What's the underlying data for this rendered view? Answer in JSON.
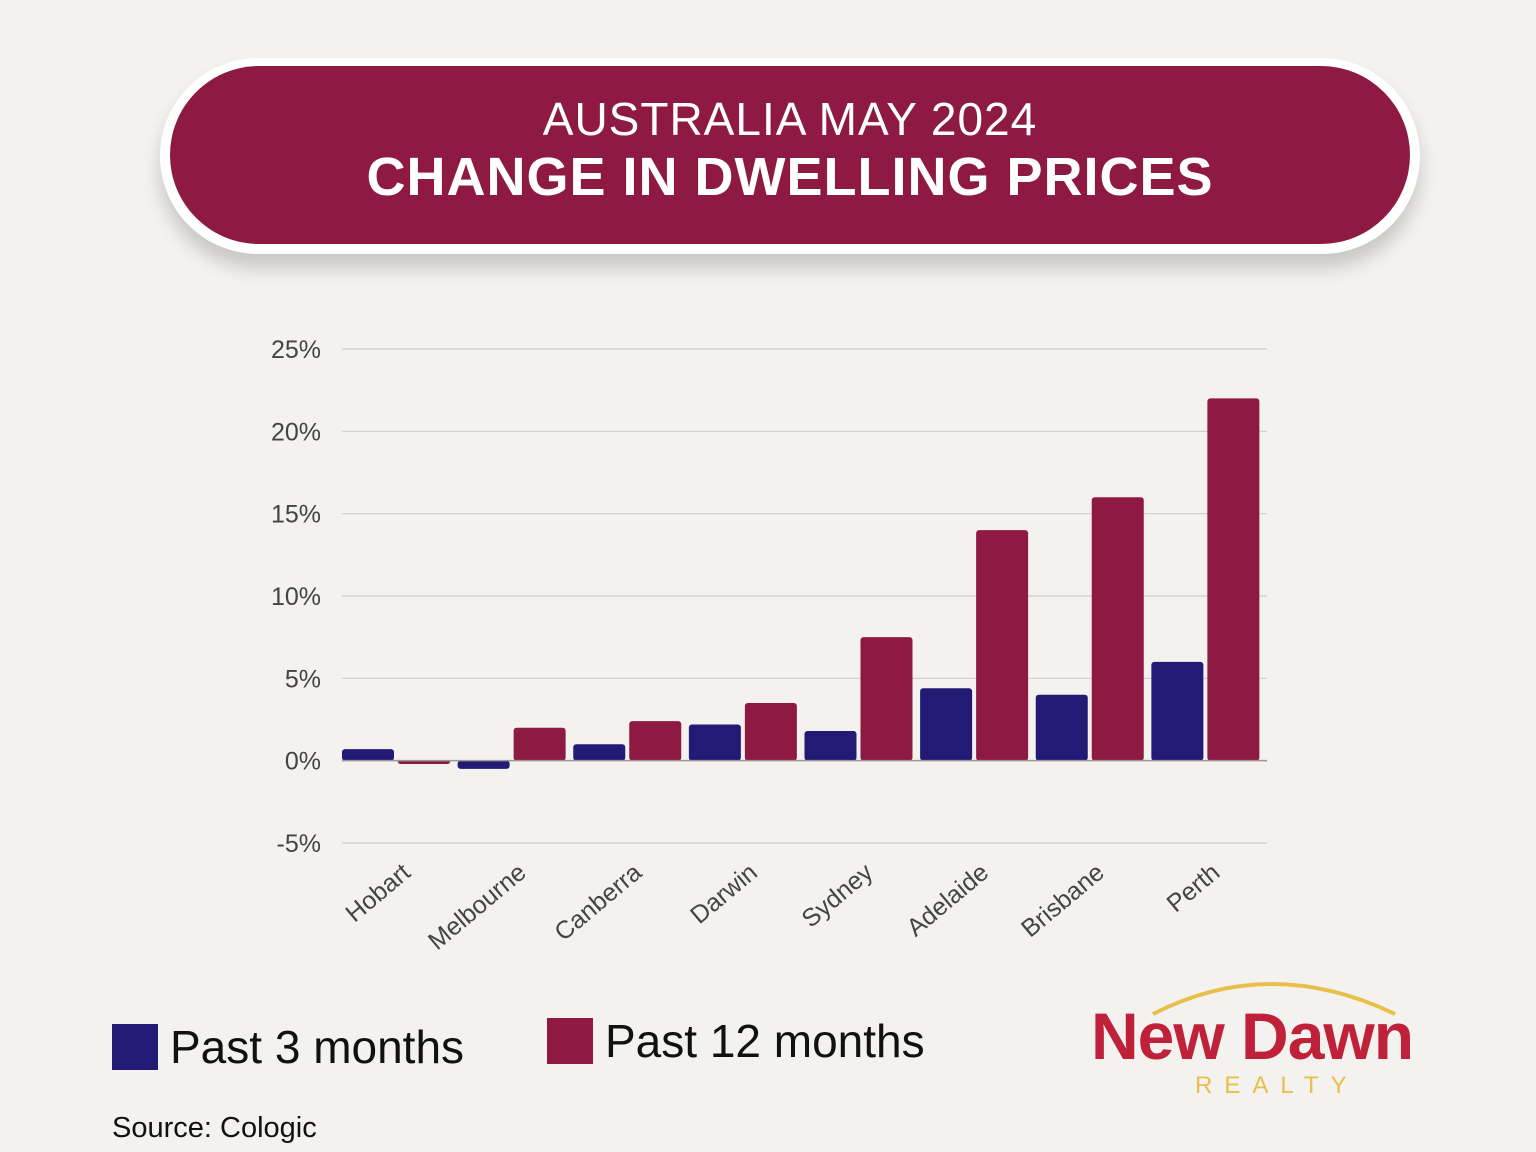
{
  "header": {
    "subtitle": "AUSTRALIA MAY 2024",
    "title": "CHANGE IN DWELLING PRICES"
  },
  "chart_data": {
    "type": "bar",
    "title": "CHANGE IN DWELLING PRICES",
    "subtitle": "AUSTRALIA MAY 2024",
    "categories": [
      "Hobart",
      "Melbourne",
      "Canberra",
      "Darwin",
      "Sydney",
      "Adelaide",
      "Brisbane",
      "Perth"
    ],
    "series": [
      {
        "name": "Past 3 months",
        "color": "#221a75",
        "values": [
          0.7,
          -0.5,
          1.0,
          2.2,
          1.8,
          4.4,
          4.0,
          6.0
        ]
      },
      {
        "name": "Past 12 months",
        "color": "#8e1a43",
        "values": [
          -0.2,
          2.0,
          2.4,
          3.5,
          7.5,
          14.0,
          16.0,
          22.0
        ]
      }
    ],
    "ylim": [
      -5,
      25
    ],
    "yticks": [
      -5,
      0,
      5,
      10,
      15,
      20,
      25
    ],
    "ytick_labels": [
      "-5%",
      "0%",
      "5%",
      "10%",
      "15%",
      "20%",
      "25%"
    ],
    "grid": true,
    "legend_placement": "bottom-left"
  },
  "source": "Source: Cologic",
  "logo": {
    "name": "New Dawn",
    "tagline": "REALTY"
  }
}
